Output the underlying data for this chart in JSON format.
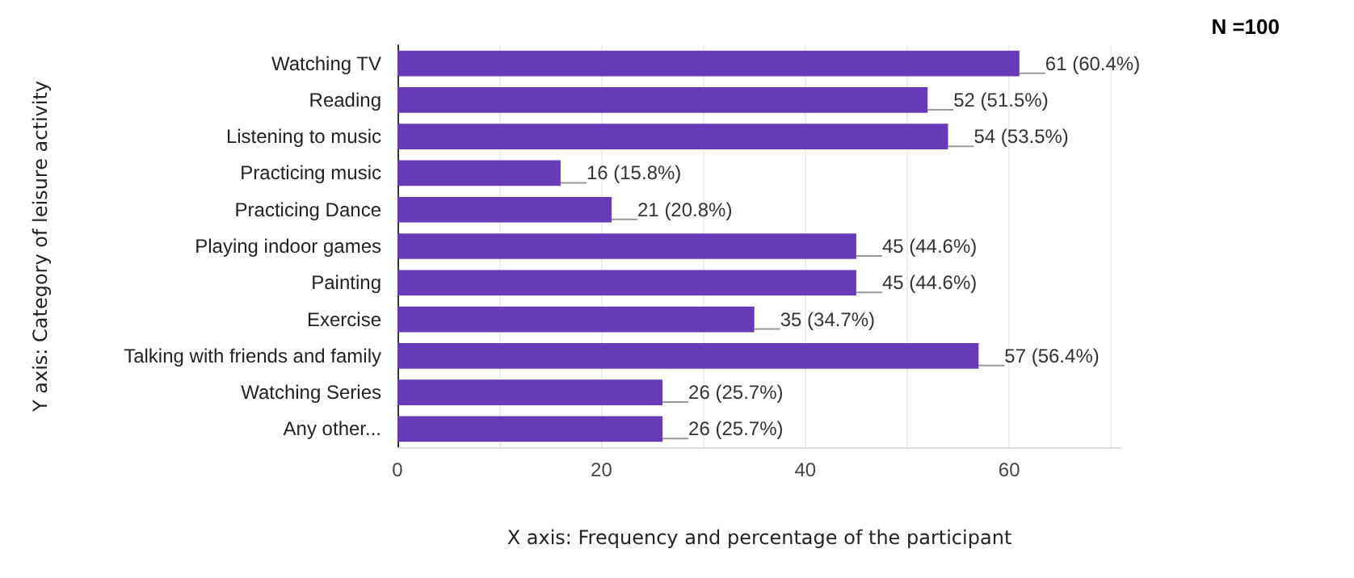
{
  "chart_data": {
    "type": "bar",
    "orientation": "horizontal",
    "categories": [
      "Watching TV",
      "Reading",
      "Listening to music",
      "Practicing music",
      "Practicing Dance",
      "Playing indoor games",
      "Painting",
      "Exercise",
      "Talking with friends and family",
      "Watching Series",
      "Any other..."
    ],
    "values": [
      61,
      52,
      54,
      16,
      21,
      45,
      45,
      35,
      57,
      26,
      26
    ],
    "value_labels": [
      "61 (60.4%)",
      "52 (51.5%)",
      "54 (53.5%)",
      "16 (15.8%)",
      "21 (20.8%)",
      "45 (44.6%)",
      "45 (44.6%)",
      "35 (34.7%)",
      "57 (56.4%)",
      "26 (25.7%)",
      "26 (25.7%)"
    ],
    "color": "#673ab7",
    "xlim": [
      0,
      71
    ],
    "xticks": [
      0,
      {
        "value": 10,
        "label": null
      },
      20,
      {
        "value": 30,
        "label": null
      },
      40,
      {
        "value": 50,
        "label": null
      },
      60,
      {
        "value": 70,
        "label": null
      }
    ],
    "grid": "x",
    "xlabel": "X axis: Frequency and percentage of the participant",
    "ylabel": "Y axis: Category of leisure activity",
    "annotations": [
      "N =100"
    ]
  }
}
